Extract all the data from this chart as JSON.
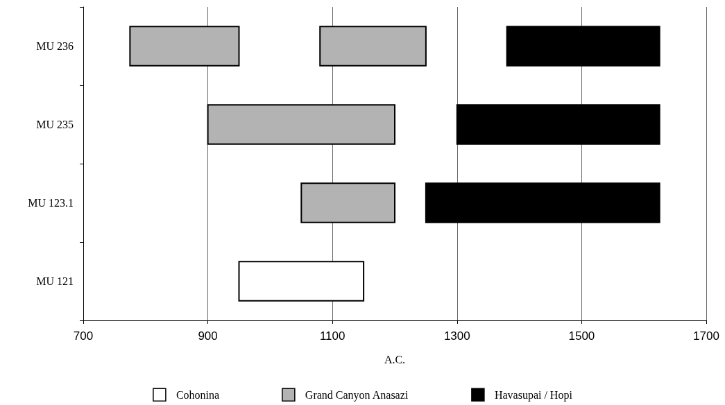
{
  "chart_data": {
    "type": "bar",
    "orientation": "horizontal",
    "xlabel": "A.C.",
    "categories": [
      "MU 236",
      "MU 235",
      "MU 123.1",
      "MU 121"
    ],
    "series": [
      {
        "name": "Cohonina",
        "color": "#ffffff",
        "base": [
          null,
          null,
          null,
          950
        ],
        "values": [
          null,
          null,
          null,
          200
        ]
      },
      {
        "name": "Grand Canyon Anasazi",
        "color": "#b3b3b3",
        "base": [
          775,
          900,
          1050,
          null
        ],
        "values": [
          175,
          300,
          150,
          null
        ]
      },
      {
        "color": "#b3b3b3",
        "base": [
          1080,
          null,
          null,
          null
        ],
        "values": [
          170,
          null,
          null,
          null
        ]
      },
      {
        "name": "Havasupai / Hopi",
        "color": "#000000",
        "base": [
          1380,
          1300,
          1250,
          null
        ],
        "values": [
          245,
          325,
          375,
          null
        ]
      }
    ],
    "xlim": [
      700,
      1700
    ],
    "xticks": [
      700,
      900,
      1100,
      1300,
      1500,
      1700
    ],
    "grid": "x",
    "legend": "bottom"
  }
}
